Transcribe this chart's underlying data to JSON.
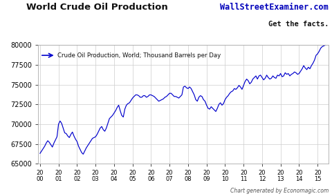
{
  "title": "World Crude Oil Production",
  "watermark_line1": "WallStreetExaminer.com",
  "watermark_line2": "Get the facts.",
  "annotation": "Crude Oil Production, World; Thousand Barrels per Day",
  "footer": "Chart generated by Economagic.com",
  "line_color": "#0000cc",
  "bg_color": "#ffffff",
  "grid_color": "#cccccc",
  "ylim": [
    65000,
    80000
  ],
  "yticks": [
    65000,
    67500,
    70000,
    72500,
    75000,
    77500,
    80000
  ],
  "xtick_positions": [
    2000,
    2001,
    2002,
    2003,
    2004,
    2005,
    2006,
    2007,
    2008,
    2009,
    2010,
    2011,
    2012,
    2013,
    2014,
    2015
  ],
  "xtick_labels": [
    "20\n00",
    "20\n01",
    "20\n02",
    "20\n03",
    "20\n04",
    "20\n05",
    "20\n06",
    "20\n07",
    "20\n08",
    "20\n09",
    "20\n10",
    "20\n11",
    "20\n12",
    "20\n13",
    "20\n14",
    "20\n15"
  ],
  "values": [
    66300,
    66600,
    66900,
    67200,
    67600,
    67900,
    67700,
    67400,
    67100,
    67600,
    68000,
    68400,
    70000,
    70400,
    70100,
    69500,
    68900,
    68800,
    68500,
    68300,
    68700,
    69000,
    68500,
    68100,
    67800,
    67200,
    66800,
    66400,
    66200,
    66600,
    67000,
    67300,
    67600,
    67900,
    68200,
    68300,
    68400,
    68700,
    69100,
    69500,
    69700,
    69300,
    69100,
    69500,
    70100,
    70700,
    70900,
    71100,
    71400,
    71700,
    72100,
    72400,
    71700,
    71100,
    70900,
    71900,
    72400,
    72600,
    72700,
    73000,
    73300,
    73500,
    73700,
    73700,
    73600,
    73400,
    73400,
    73600,
    73600,
    73400,
    73500,
    73700,
    73700,
    73600,
    73500,
    73300,
    73100,
    72900,
    73000,
    73100,
    73200,
    73400,
    73500,
    73700,
    73900,
    73900,
    73700,
    73500,
    73500,
    73400,
    73300,
    73500,
    73700,
    74700,
    74800,
    74600,
    74500,
    74700,
    74500,
    74100,
    73700,
    73100,
    72900,
    73400,
    73600,
    73500,
    73100,
    72900,
    72400,
    72000,
    71900,
    72200,
    72000,
    71800,
    71600,
    72000,
    72500,
    72700,
    72400,
    72600,
    73100,
    73400,
    73600,
    73900,
    74100,
    74200,
    74500,
    74400,
    74600,
    74900,
    74700,
    74400,
    74900,
    75400,
    75700,
    75500,
    75100,
    75300,
    75700,
    75900,
    76100,
    75700,
    76100,
    76200,
    75900,
    75600,
    75800,
    76200,
    75900,
    75700,
    75800,
    76100,
    75900,
    75800,
    76200,
    76100,
    76400,
    76000,
    76100,
    76500,
    76300,
    76400,
    76100,
    76300,
    76400,
    76600,
    76500,
    76300,
    76400,
    76700,
    77000,
    77400,
    77100,
    76900,
    77200,
    77000,
    77400,
    77700,
    78100,
    78700,
    78900,
    79200,
    79600,
    79800,
    79900,
    80000
  ]
}
